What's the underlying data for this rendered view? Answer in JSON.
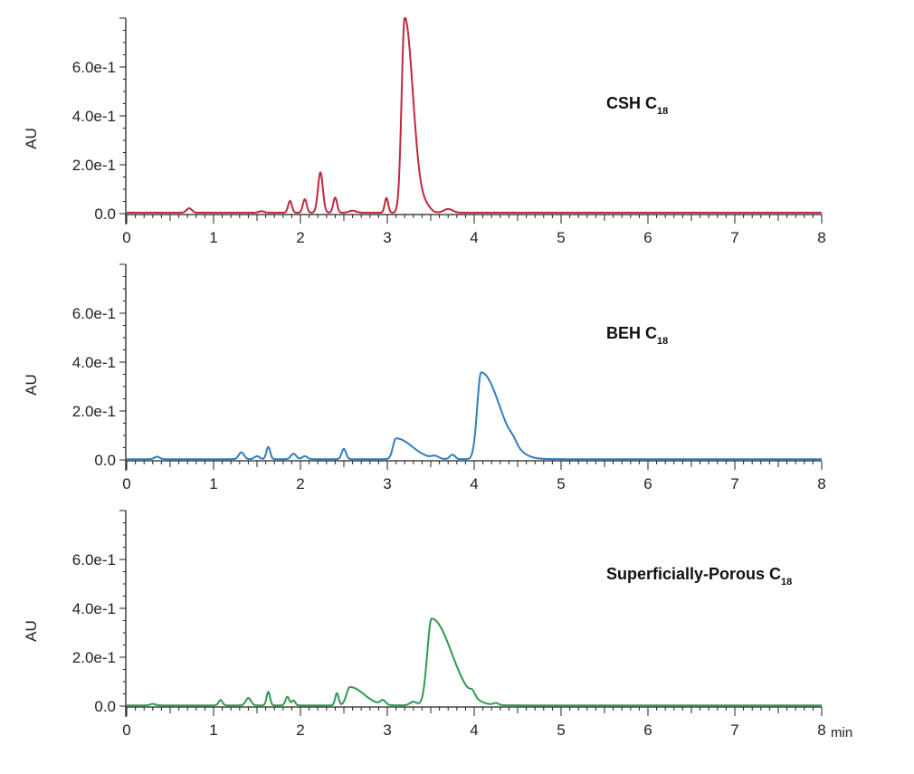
{
  "chart_data": [
    {
      "type": "line",
      "label_main": "CSH C",
      "label_sub": "18",
      "ylabel": "AU",
      "xlabel": "",
      "xlim": [
        0,
        8
      ],
      "ylim": [
        0,
        0.8
      ],
      "x_ticks": [
        0,
        1,
        2,
        3,
        4,
        5,
        6,
        7,
        8
      ],
      "y_ticks": [
        {
          "value": 0.0,
          "label": "0.0"
        },
        {
          "value": 0.2,
          "label": "2.0e-1"
        },
        {
          "value": 0.4,
          "label": "4.0e-1"
        },
        {
          "value": 0.6,
          "label": "6.0e-1"
        }
      ],
      "color": "#c0283e",
      "baseline": 0.004,
      "peaks": [
        {
          "rt": 0.72,
          "height": 0.018,
          "width": 0.03
        },
        {
          "rt": 1.55,
          "height": 0.006,
          "width": 0.03
        },
        {
          "rt": 1.88,
          "height": 0.048,
          "width": 0.022
        },
        {
          "rt": 2.05,
          "height": 0.055,
          "width": 0.022
        },
        {
          "rt": 2.23,
          "height": 0.165,
          "width": 0.028
        },
        {
          "rt": 2.4,
          "height": 0.062,
          "width": 0.022
        },
        {
          "rt": 2.6,
          "height": 0.008,
          "width": 0.04
        },
        {
          "rt": 2.99,
          "height": 0.06,
          "width": 0.02
        },
        {
          "rt": 3.2,
          "height": 0.8,
          "width": 0.035,
          "tail": 0.06
        },
        {
          "rt": 3.45,
          "height": 0.02,
          "width": 0.05
        },
        {
          "rt": 3.7,
          "height": 0.015,
          "width": 0.05
        }
      ]
    },
    {
      "type": "line",
      "label_main": "BEH C",
      "label_sub": "18",
      "ylabel": "AU",
      "xlabel": "",
      "xlim": [
        0,
        8
      ],
      "ylim": [
        0,
        0.8
      ],
      "x_ticks": [
        0,
        1,
        2,
        3,
        4,
        5,
        6,
        7,
        8
      ],
      "y_ticks": [
        {
          "value": 0.0,
          "label": "0.0"
        },
        {
          "value": 0.2,
          "label": "2.0e-1"
        },
        {
          "value": 0.4,
          "label": "4.0e-1"
        },
        {
          "value": 0.6,
          "label": "6.0e-1"
        }
      ],
      "color": "#2f7fc0",
      "baseline": 0.003,
      "peaks": [
        {
          "rt": 0.35,
          "height": 0.01,
          "width": 0.03
        },
        {
          "rt": 1.32,
          "height": 0.028,
          "width": 0.03
        },
        {
          "rt": 1.5,
          "height": 0.012,
          "width": 0.03
        },
        {
          "rt": 1.63,
          "height": 0.05,
          "width": 0.022
        },
        {
          "rt": 1.92,
          "height": 0.022,
          "width": 0.03
        },
        {
          "rt": 2.05,
          "height": 0.012,
          "width": 0.03
        },
        {
          "rt": 2.5,
          "height": 0.042,
          "width": 0.025
        },
        {
          "rt": 3.1,
          "height": 0.085,
          "width": 0.035,
          "tail": 0.15
        },
        {
          "rt": 3.55,
          "height": 0.01,
          "width": 0.04
        },
        {
          "rt": 3.75,
          "height": 0.018,
          "width": 0.03
        },
        {
          "rt": 4.08,
          "height": 0.355,
          "width": 0.045,
          "tail": 0.17
        },
        {
          "rt": 4.45,
          "height": 0.015,
          "width": 0.04
        }
      ]
    },
    {
      "type": "line",
      "label_main": "Superficially-Porous C",
      "label_sub": "18",
      "ylabel": "AU",
      "xlabel": "min",
      "xlim": [
        0,
        8
      ],
      "ylim": [
        0,
        0.8
      ],
      "x_ticks": [
        0,
        1,
        2,
        3,
        4,
        5,
        6,
        7,
        8
      ],
      "y_ticks": [
        {
          "value": 0.0,
          "label": "0.0"
        },
        {
          "value": 0.2,
          "label": "2.0e-1"
        },
        {
          "value": 0.4,
          "label": "4.0e-1"
        },
        {
          "value": 0.6,
          "label": "6.0e-1"
        }
      ],
      "color": "#2e9a52",
      "baseline": 0.003,
      "peaks": [
        {
          "rt": 0.3,
          "height": 0.006,
          "width": 0.03
        },
        {
          "rt": 1.08,
          "height": 0.022,
          "width": 0.022
        },
        {
          "rt": 1.4,
          "height": 0.03,
          "width": 0.03
        },
        {
          "rt": 1.63,
          "height": 0.055,
          "width": 0.02
        },
        {
          "rt": 1.85,
          "height": 0.035,
          "width": 0.022
        },
        {
          "rt": 1.92,
          "height": 0.02,
          "width": 0.02
        },
        {
          "rt": 2.42,
          "height": 0.05,
          "width": 0.02
        },
        {
          "rt": 2.57,
          "height": 0.075,
          "width": 0.04,
          "tail": 0.12
        },
        {
          "rt": 2.95,
          "height": 0.018,
          "width": 0.03
        },
        {
          "rt": 3.3,
          "height": 0.015,
          "width": 0.04
        },
        {
          "rt": 3.51,
          "height": 0.355,
          "width": 0.05,
          "tail": 0.18
        },
        {
          "rt": 3.98,
          "height": 0.02,
          "width": 0.03
        },
        {
          "rt": 4.25,
          "height": 0.008,
          "width": 0.03
        }
      ]
    }
  ]
}
